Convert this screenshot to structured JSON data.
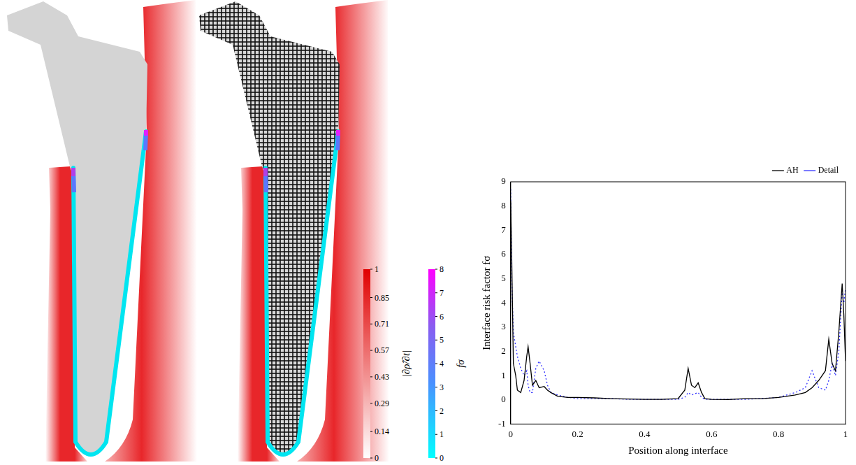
{
  "chart_data": {
    "type": "line",
    "x_label": "Position along interface",
    "y_label": "Interface risk factor fσ",
    "x": [
      0,
      0.003,
      0.008,
      0.015,
      0.02,
      0.03,
      0.04,
      0.048,
      0.052,
      0.058,
      0.065,
      0.075,
      0.085,
      0.1,
      0.11,
      0.12,
      0.14,
      0.17,
      0.2,
      0.25,
      0.3,
      0.35,
      0.4,
      0.45,
      0.5,
      0.52,
      0.53,
      0.54,
      0.55,
      0.56,
      0.57,
      0.58,
      0.6,
      0.65,
      0.7,
      0.75,
      0.8,
      0.85,
      0.88,
      0.9,
      0.92,
      0.94,
      0.95,
      0.96,
      0.97,
      0.98,
      0.99,
      0.995,
      1
    ],
    "series": [
      {
        "name": "AH",
        "color": "#000000",
        "line_style": "solid",
        "values": [
          8.2,
          6,
          1.5,
          1.0,
          0.4,
          0.3,
          0.8,
          1.8,
          2.2,
          1.5,
          0.6,
          0.8,
          0.5,
          0.55,
          0.4,
          0.3,
          0.15,
          0.1,
          0.1,
          0.08,
          0.05,
          0.03,
          0.02,
          0.02,
          0.05,
          0.4,
          1.3,
          0.6,
          0.5,
          0.7,
          0.3,
          0.05,
          0.02,
          0.01,
          0.05,
          0.05,
          0.1,
          0.2,
          0.3,
          0.5,
          0.8,
          1.2,
          2.5,
          1.5,
          1.2,
          2.8,
          4.8,
          3.5,
          1.6
        ]
      },
      {
        "name": "Detail",
        "color": "#3333ff",
        "line_style": "dotted",
        "values": [
          8.7,
          5,
          2.8,
          2.2,
          1.8,
          1.3,
          1.0,
          1.2,
          0.6,
          0.3,
          0.3,
          1.3,
          1.6,
          1.2,
          0.6,
          0.3,
          0.2,
          0.1,
          0.05,
          0.05,
          0.05,
          0.02,
          0.02,
          0.02,
          0.02,
          0.1,
          0.3,
          0.2,
          0.25,
          0.3,
          0.1,
          0.02,
          0.02,
          0.02,
          0.02,
          0.05,
          0.1,
          0.3,
          0.5,
          1.2,
          0.5,
          0.4,
          0.8,
          1.5,
          1.0,
          2.0,
          4.5,
          4.0,
          4.6
        ]
      }
    ],
    "xlim": [
      0,
      1
    ],
    "xticks": [
      0,
      0.2,
      0.4,
      0.6,
      0.8,
      1
    ],
    "ylim": [
      -1,
      9
    ],
    "yticks": [
      -1,
      0,
      1,
      2,
      3,
      4,
      5,
      6,
      7,
      8,
      9
    ],
    "grid": false,
    "legend": "top right"
  },
  "colorbars": [
    {
      "label": "|∂ρ̂/∂t|",
      "range": [
        0,
        1
      ],
      "ticks": [
        0,
        0.14,
        0.29,
        0.43,
        0.57,
        0.71,
        0.85,
        1
      ]
    },
    {
      "label": "fσ",
      "range": [
        0,
        8
      ],
      "ticks": [
        0,
        1,
        2,
        3,
        4,
        5,
        6,
        7,
        8
      ]
    }
  ]
}
